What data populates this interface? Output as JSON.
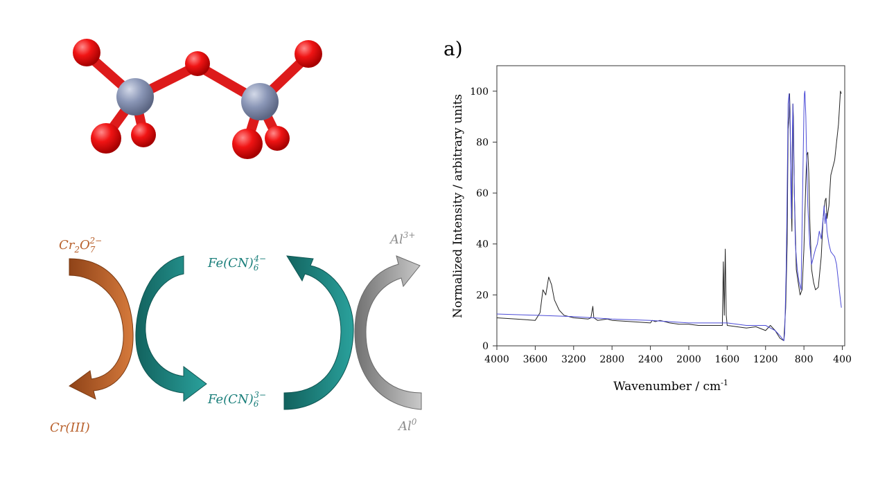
{
  "molecule": {
    "colors": {
      "cr": "#8a96b6",
      "o": "#e81010",
      "bond_o": "#dd1b1b",
      "bond_cr": "#8a96b6"
    }
  },
  "cycle": {
    "dichromate": {
      "base": "Cr",
      "sub1": "2",
      "mid": "O",
      "sub2": "7",
      "sup": "2−"
    },
    "cr3": "Cr(III)",
    "ferro": {
      "base": "Fe(CN)",
      "sub": "6",
      "sup": "4−"
    },
    "ferri": {
      "base": "Fe(CN)",
      "sub": "6",
      "sup": "3−"
    },
    "al3": {
      "base": "Al",
      "sup": "3+"
    },
    "al0": {
      "base": "Al",
      "sup": "0"
    },
    "colors": {
      "orange": "#b8602b",
      "teal": "#1b7f7b",
      "gray": "#8c8c8c"
    }
  },
  "panel_label": "a)",
  "chart_data": {
    "type": "line",
    "xlabel": "Wavenumber / cm",
    "xlabel_sup": "-1",
    "ylabel": "Normalized Intensity  / arbitrary units",
    "xlim": [
      4000,
      375
    ],
    "ylim": [
      0,
      110
    ],
    "x_ticks": [
      4000,
      3600,
      3200,
      2800,
      2400,
      2000,
      1600,
      1200,
      800,
      400
    ],
    "y_ticks": [
      0,
      20,
      40,
      60,
      80,
      100
    ],
    "x_tick_labels": [
      "4000",
      "3600",
      "3200",
      "2800",
      "2400",
      "2000",
      "1600",
      "1200",
      "800",
      "400"
    ],
    "y_tick_labels": [
      "0",
      "20",
      "40",
      "60",
      "80",
      "100"
    ],
    "grid": false,
    "series": [
      {
        "color": "#222222",
        "points": [
          [
            4000,
            11
          ],
          [
            3800,
            10.5
          ],
          [
            3600,
            10
          ],
          [
            3550,
            13
          ],
          [
            3520,
            22
          ],
          [
            3490,
            20
          ],
          [
            3460,
            27
          ],
          [
            3430,
            24
          ],
          [
            3400,
            18
          ],
          [
            3350,
            14
          ],
          [
            3300,
            12
          ],
          [
            3200,
            11
          ],
          [
            3050,
            10.5
          ],
          [
            3020,
            11
          ],
          [
            3000,
            15.5
          ],
          [
            2990,
            11
          ],
          [
            2950,
            10
          ],
          [
            2850,
            10.5
          ],
          [
            2800,
            10
          ],
          [
            2600,
            9.5
          ],
          [
            2400,
            9
          ],
          [
            2380,
            10
          ],
          [
            2350,
            9.5
          ],
          [
            2300,
            10
          ],
          [
            2200,
            9
          ],
          [
            2100,
            8.5
          ],
          [
            2000,
            8.5
          ],
          [
            1900,
            8
          ],
          [
            1800,
            8
          ],
          [
            1700,
            8
          ],
          [
            1650,
            8
          ],
          [
            1640,
            33
          ],
          [
            1630,
            12
          ],
          [
            1620,
            38
          ],
          [
            1610,
            12
          ],
          [
            1600,
            8
          ],
          [
            1500,
            7.5
          ],
          [
            1400,
            7
          ],
          [
            1300,
            7.5
          ],
          [
            1200,
            6
          ],
          [
            1150,
            8
          ],
          [
            1100,
            6
          ],
          [
            1050,
            3
          ],
          [
            1010,
            2
          ],
          [
            990,
            15
          ],
          [
            975,
            40
          ],
          [
            965,
            85
          ],
          [
            955,
            90
          ],
          [
            950,
            99
          ],
          [
            945,
            92
          ],
          [
            935,
            60
          ],
          [
            925,
            45
          ],
          [
            915,
            95
          ],
          [
            910,
            90
          ],
          [
            900,
            60
          ],
          [
            880,
            30
          ],
          [
            860,
            25
          ],
          [
            840,
            20
          ],
          [
            820,
            22
          ],
          [
            800,
            38
          ],
          [
            780,
            65
          ],
          [
            770,
            75
          ],
          [
            760,
            76
          ],
          [
            750,
            68
          ],
          [
            740,
            50
          ],
          [
            720,
            30
          ],
          [
            700,
            25
          ],
          [
            680,
            22
          ],
          [
            650,
            23
          ],
          [
            620,
            35
          ],
          [
            600,
            50
          ],
          [
            580,
            57
          ],
          [
            570,
            58
          ],
          [
            560,
            50
          ],
          [
            540,
            55
          ],
          [
            520,
            67
          ],
          [
            500,
            70
          ],
          [
            480,
            73
          ],
          [
            460,
            80
          ],
          [
            440,
            87
          ],
          [
            420,
            100
          ],
          [
            410,
            99
          ]
        ]
      },
      {
        "color": "#4a4ad6",
        "points": [
          [
            4000,
            12.5
          ],
          [
            3600,
            12
          ],
          [
            3200,
            11.5
          ],
          [
            2800,
            10.5
          ],
          [
            2400,
            10
          ],
          [
            2000,
            9
          ],
          [
            1800,
            9
          ],
          [
            1600,
            9
          ],
          [
            1400,
            8
          ],
          [
            1200,
            8
          ],
          [
            1100,
            6
          ],
          [
            1050,
            4
          ],
          [
            1010,
            2
          ],
          [
            1000,
            5
          ],
          [
            985,
            30
          ],
          [
            975,
            60
          ],
          [
            965,
            95
          ],
          [
            955,
            99
          ],
          [
            950,
            95
          ],
          [
            945,
            88
          ],
          [
            930,
            50
          ],
          [
            920,
            85
          ],
          [
            915,
            95
          ],
          [
            905,
            70
          ],
          [
            890,
            40
          ],
          [
            870,
            30
          ],
          [
            850,
            25
          ],
          [
            830,
            22
          ],
          [
            810,
            70
          ],
          [
            800,
            92
          ],
          [
            795,
            99
          ],
          [
            790,
            100
          ],
          [
            780,
            90
          ],
          [
            770,
            70
          ],
          [
            760,
            55
          ],
          [
            740,
            40
          ],
          [
            720,
            32
          ],
          [
            700,
            35
          ],
          [
            680,
            38
          ],
          [
            660,
            40
          ],
          [
            640,
            45
          ],
          [
            620,
            42
          ],
          [
            600,
            50
          ],
          [
            590,
            55
          ],
          [
            580,
            48
          ],
          [
            570,
            52
          ],
          [
            560,
            45
          ],
          [
            540,
            40
          ],
          [
            520,
            37
          ],
          [
            500,
            36
          ],
          [
            480,
            35
          ],
          [
            460,
            32
          ],
          [
            440,
            25
          ],
          [
            420,
            18
          ],
          [
            410,
            15
          ]
        ]
      }
    ]
  }
}
